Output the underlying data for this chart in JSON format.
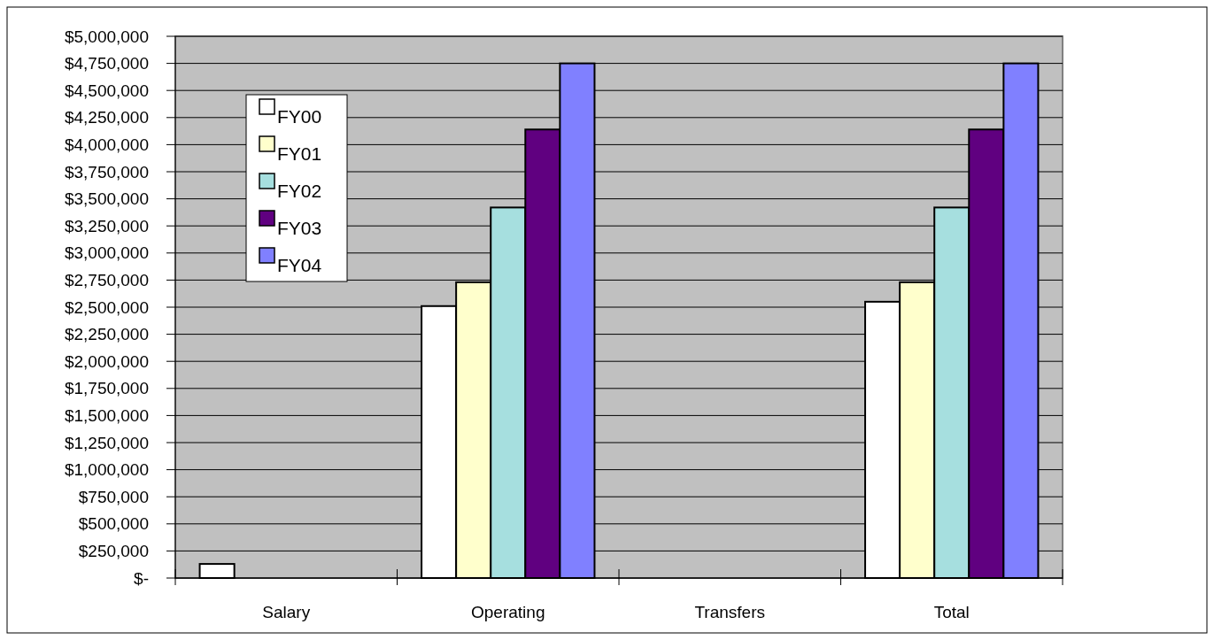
{
  "chart_data": {
    "type": "bar",
    "categories": [
      "Salary",
      "Operating",
      "Transfers",
      "Total"
    ],
    "series": [
      {
        "name": "FY00",
        "color": "#ffffff",
        "values": [
          130000,
          2510000,
          0,
          2550000
        ]
      },
      {
        "name": "FY01",
        "color": "#ffffcc",
        "values": [
          0,
          2730000,
          0,
          2730000
        ]
      },
      {
        "name": "FY02",
        "color": "#a6dfdf",
        "values": [
          0,
          3420000,
          0,
          3420000
        ]
      },
      {
        "name": "FY03",
        "color": "#600080",
        "values": [
          0,
          4140000,
          0,
          4140000
        ]
      },
      {
        "name": "FY04",
        "color": "#8080ff",
        "values": [
          0,
          4750000,
          0,
          4750000
        ]
      }
    ],
    "ylim": [
      0,
      5000000
    ],
    "yticks": [
      {
        "value": 0,
        "label": "$-"
      },
      {
        "value": 250000,
        "label": "$250,000"
      },
      {
        "value": 500000,
        "label": "$500,000"
      },
      {
        "value": 750000,
        "label": "$750,000"
      },
      {
        "value": 1000000,
        "label": "$1,000,000"
      },
      {
        "value": 1250000,
        "label": "$1,250,000"
      },
      {
        "value": 1500000,
        "label": "$1,500,000"
      },
      {
        "value": 1750000,
        "label": "$1,750,000"
      },
      {
        "value": 2000000,
        "label": "$2,000,000"
      },
      {
        "value": 2250000,
        "label": "$2,250,000"
      },
      {
        "value": 2500000,
        "label": "$2,500,000"
      },
      {
        "value": 2750000,
        "label": "$2,750,000"
      },
      {
        "value": 3000000,
        "label": "$3,000,000"
      },
      {
        "value": 3250000,
        "label": "$3,250,000"
      },
      {
        "value": 3500000,
        "label": "$3,500,000"
      },
      {
        "value": 3750000,
        "label": "$3,750,000"
      },
      {
        "value": 4000000,
        "label": "$4,000,000"
      },
      {
        "value": 4250000,
        "label": "$4,250,000"
      },
      {
        "value": 4500000,
        "label": "$4,500,000"
      },
      {
        "value": 4750000,
        "label": "$4,750,000"
      },
      {
        "value": 5000000,
        "label": "$5,000,000"
      }
    ],
    "grid": "y",
    "legend": "top left"
  }
}
